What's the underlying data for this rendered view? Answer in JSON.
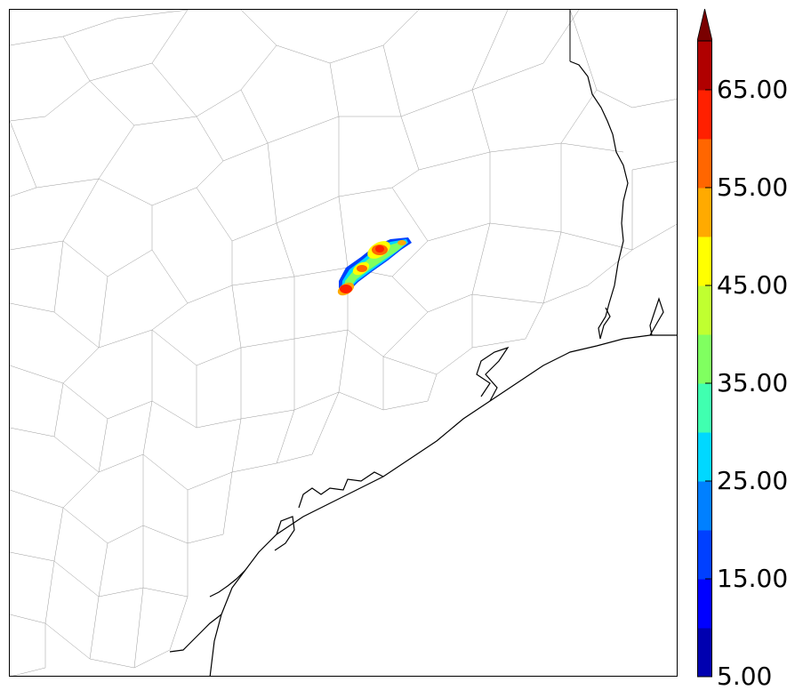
{
  "map": {
    "description_free": true,
    "fill_colors": [
      "#0000b0",
      "#0000ff",
      "#0040ff",
      "#0080ff",
      "#00d8ff",
      "#40ffb0",
      "#80ff60",
      "#c0ff30",
      "#ffff00",
      "#ffaa00",
      "#ff6600",
      "#ff2000",
      "#b00000"
    ]
  },
  "colorbar": {
    "min": 5.0,
    "step": 5.0,
    "extend": "max",
    "tick_labels": [
      "5.00",
      "15.00",
      "25.00",
      "35.00",
      "45.00",
      "55.00",
      "65.00"
    ],
    "tick_values": [
      5,
      15,
      25,
      35,
      45,
      55,
      65
    ],
    "colors": [
      "#0000b0",
      "#0000ff",
      "#0040ff",
      "#0080ff",
      "#00d8ff",
      "#40ffb0",
      "#80ff60",
      "#c0ff30",
      "#ffff00",
      "#ffaa00",
      "#ff6600",
      "#ff2000",
      "#b00000"
    ],
    "extend_color": "#7a0000"
  }
}
